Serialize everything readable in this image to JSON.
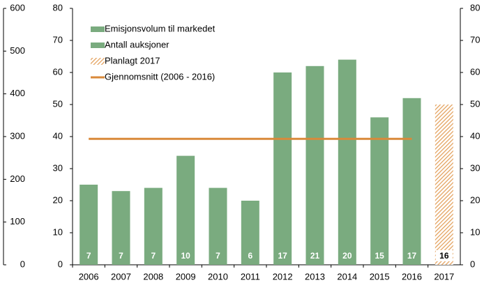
{
  "chart_data": {
    "type": "bar",
    "categories": [
      "2006",
      "2007",
      "2008",
      "2009",
      "2010",
      "2011",
      "2012",
      "2013",
      "2014",
      "2015",
      "2016",
      "2017"
    ],
    "series": [
      {
        "name": "Emisjonsvolum til markedet",
        "color": "#7aab7f",
        "values": [
          25,
          23,
          24,
          34,
          24,
          20,
          60,
          62,
          64,
          46,
          52,
          null
        ]
      },
      {
        "name": "Antall auksjoner",
        "color": "#7aab7f",
        "axis": "y3",
        "values": [
          7,
          7,
          7,
          10,
          7,
          6,
          17,
          21,
          20,
          15,
          17,
          16
        ]
      },
      {
        "name": "Planlagt 2017",
        "color": "#e3a05a",
        "values": [
          null,
          null,
          null,
          null,
          null,
          null,
          null,
          null,
          null,
          null,
          null,
          50
        ]
      },
      {
        "name": "Gjennomsnitt (2006 - 2016)",
        "color": "#d9893a",
        "type": "line",
        "values": [
          39.3,
          39.3,
          39.3,
          39.3,
          39.3,
          39.3,
          39.3,
          39.3,
          39.3,
          39.3,
          39.3,
          null
        ]
      }
    ],
    "ylim": [
      0,
      80
    ],
    "yticks": [
      0,
      10,
      20,
      30,
      40,
      50,
      60,
      70,
      80
    ],
    "y2lim": [
      0,
      80
    ],
    "y2ticks": [
      0,
      10,
      20,
      30,
      40,
      50,
      60,
      70,
      80
    ],
    "y3lim": [
      0,
      600
    ],
    "y3ticks": [
      0,
      100,
      200,
      300,
      400,
      500,
      600
    ]
  }
}
